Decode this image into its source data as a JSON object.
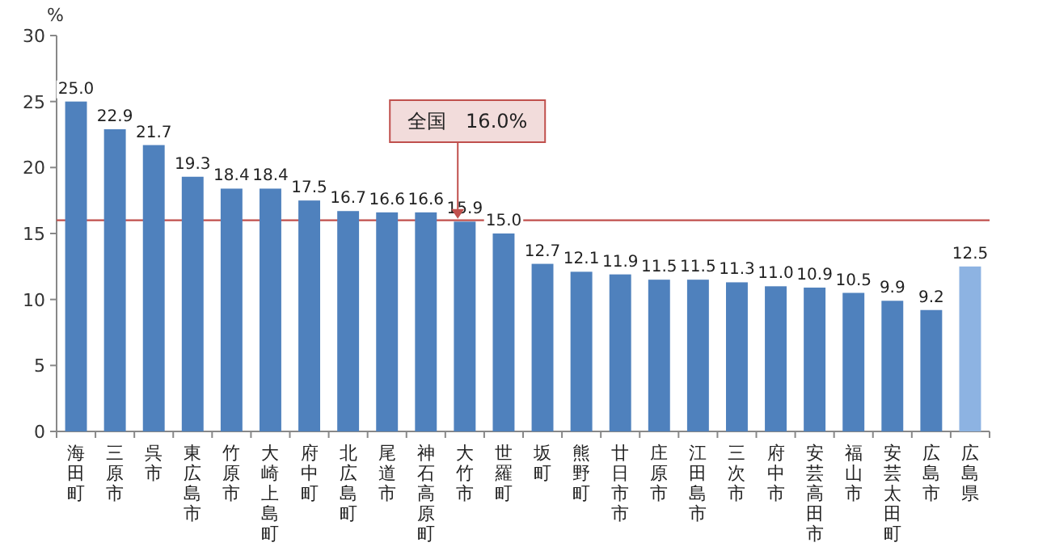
{
  "chart_data": {
    "type": "bar",
    "ylabel": "%",
    "categories": [
      "海田町",
      "三原市",
      "呉市",
      "東広島市",
      "竹原市",
      "大崎上島町",
      "府中町",
      "北広島町",
      "尾道市",
      "神石高原町",
      "大竹市",
      "世羅町",
      "坂町",
      "熊野町",
      "廿日市市",
      "庄原市",
      "江田島市",
      "三次市",
      "府中市",
      "安芸高田市",
      "福山市",
      "安芸太田町",
      "広島市",
      "広島県"
    ],
    "values": [
      25.0,
      22.9,
      21.7,
      19.3,
      18.4,
      18.4,
      17.5,
      16.7,
      16.6,
      16.6,
      15.9,
      15.0,
      12.7,
      12.1,
      11.9,
      11.5,
      11.5,
      11.3,
      11.0,
      10.9,
      10.5,
      9.9,
      9.2,
      12.5
    ],
    "value_labels": [
      "25.0",
      "22.9",
      "21.7",
      "19.3",
      "18.4",
      "18.4",
      "17.5",
      "16.7",
      "16.6",
      "16.6",
      "15.9",
      "15.0",
      "12.7",
      "12.1",
      "11.9",
      "11.5",
      "11.5",
      "11.3",
      "11.0",
      "10.9",
      "10.5",
      "9.9",
      "9.2",
      "12.5"
    ],
    "colors": [
      "#4f81bd",
      "#4f81bd",
      "#4f81bd",
      "#4f81bd",
      "#4f81bd",
      "#4f81bd",
      "#4f81bd",
      "#4f81bd",
      "#4f81bd",
      "#4f81bd",
      "#4f81bd",
      "#4f81bd",
      "#4f81bd",
      "#4f81bd",
      "#4f81bd",
      "#4f81bd",
      "#4f81bd",
      "#4f81bd",
      "#4f81bd",
      "#4f81bd",
      "#4f81bd",
      "#4f81bd",
      "#4f81bd",
      "#8db3e2"
    ],
    "ylim": [
      0,
      30
    ],
    "yticks": [
      0,
      5,
      10,
      15,
      20,
      25,
      30
    ],
    "ref_lines": [
      {
        "axis": "y",
        "value": 16.0,
        "label": "全国　16.0%",
        "color": "#c0504d"
      }
    ]
  }
}
